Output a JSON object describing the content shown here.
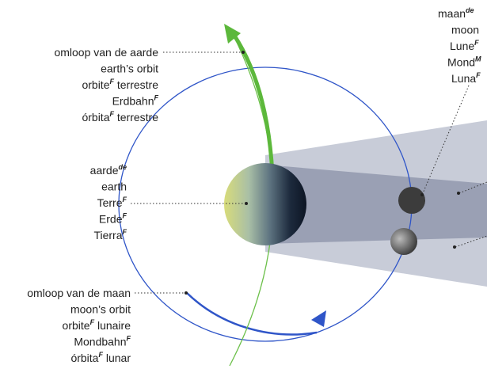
{
  "labels": [
    {
      "lines": [
        {
          "text": "omloop van de aarde"
        },
        {
          "text": "earth’s orbit"
        },
        {
          "text": "orbite",
          "sup": "F",
          "after": " terrestre"
        },
        {
          "text": "Erdbahn",
          "sup": "F"
        },
        {
          "text": "órbita",
          "sup": "F",
          "after": " terrestre"
        }
      ]
    },
    {
      "lines": [
        {
          "text": "aarde",
          "sup": "de"
        },
        {
          "text": "earth"
        },
        {
          "text": "Terre",
          "sup": "F"
        },
        {
          "text": "Erde",
          "sup": "F"
        },
        {
          "text": "Tierra",
          "sup": "F"
        }
      ]
    },
    {
      "lines": [
        {
          "text": "omloop van de maan"
        },
        {
          "text": "moon’s orbit"
        },
        {
          "text": "orbite",
          "sup": "F",
          "after": " lunaire"
        },
        {
          "text": "Mondbahn",
          "sup": "F"
        },
        {
          "text": "órbita",
          "sup": "F",
          "after": " lunar"
        }
      ]
    },
    {
      "lines": [
        {
          "text": "maan",
          "sup": "de"
        },
        {
          "text": "moon"
        },
        {
          "text": "Lune",
          "sup": "F"
        },
        {
          "text": "Mond",
          "sup": "M"
        },
        {
          "text": "Luna",
          "sup": "F"
        }
      ]
    }
  ]
}
